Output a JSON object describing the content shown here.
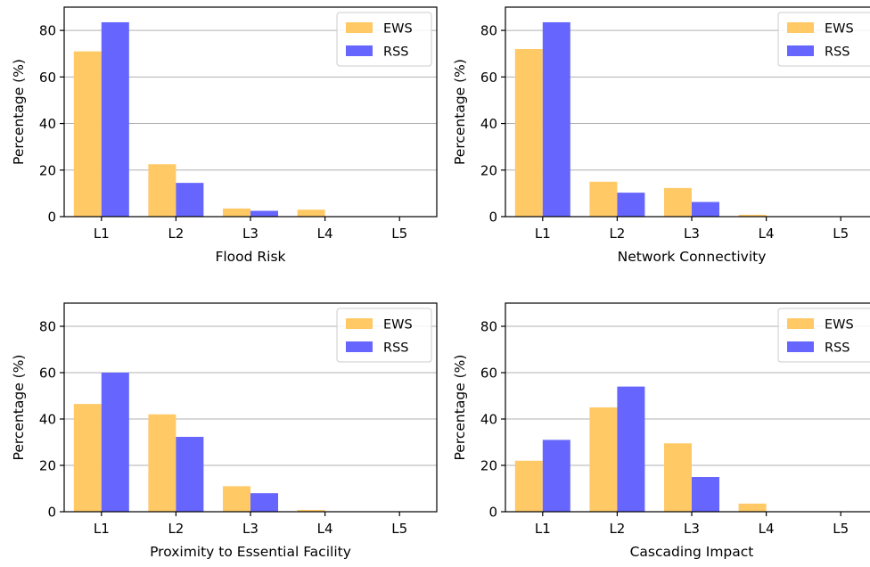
{
  "chart_data": [
    {
      "type": "bar",
      "categories": [
        "L1",
        "L2",
        "L3",
        "L4",
        "L5"
      ],
      "series": [
        {
          "name": "EWS",
          "values": [
            71,
            22.5,
            3.5,
            3,
            0
          ]
        },
        {
          "name": "RSS",
          "values": [
            83.5,
            14.5,
            2.5,
            0,
            0
          ]
        }
      ],
      "xlabel": "Flood Risk",
      "ylabel": "Percentage (%)",
      "ylim": [
        0,
        90
      ],
      "yticks": [
        "0",
        "20",
        "40",
        "60",
        "80"
      ],
      "grid": "horizontal",
      "legend": "top-right"
    },
    {
      "type": "bar",
      "categories": [
        "L1",
        "L2",
        "L3",
        "L4",
        "L5"
      ],
      "series": [
        {
          "name": "EWS",
          "values": [
            72,
            15,
            12.3,
            0.8,
            0
          ]
        },
        {
          "name": "RSS",
          "values": [
            83.5,
            10.3,
            6.3,
            0,
            0
          ]
        }
      ],
      "xlabel": "Network Connectivity",
      "ylabel": "Percentage (%)",
      "ylim": [
        0,
        90
      ],
      "yticks": [
        "0",
        "20",
        "40",
        "60",
        "80"
      ],
      "grid": "horizontal",
      "legend": "top-right"
    },
    {
      "type": "bar",
      "categories": [
        "L1",
        "L2",
        "L3",
        "L4",
        "L5"
      ],
      "series": [
        {
          "name": "EWS",
          "values": [
            46.5,
            42,
            11,
            0.8,
            0
          ]
        },
        {
          "name": "RSS",
          "values": [
            60,
            32.3,
            8,
            0,
            0
          ]
        }
      ],
      "xlabel": "Proximity to Essential Facility",
      "ylabel": "Percentage (%)",
      "ylim": [
        0,
        90
      ],
      "yticks": [
        "0",
        "20",
        "40",
        "60",
        "80"
      ],
      "grid": "horizontal",
      "legend": "top-right"
    },
    {
      "type": "bar",
      "categories": [
        "L1",
        "L2",
        "L3",
        "L4",
        "L5"
      ],
      "series": [
        {
          "name": "EWS",
          "values": [
            22,
            45,
            29.5,
            3.5,
            0
          ]
        },
        {
          "name": "RSS",
          "values": [
            31,
            54,
            15,
            0,
            0
          ]
        }
      ],
      "xlabel": "Cascading Impact",
      "ylabel": "Percentage (%)",
      "ylim": [
        0,
        90
      ],
      "yticks": [
        "0",
        "20",
        "40",
        "60",
        "80"
      ],
      "grid": "horizontal",
      "legend": "top-right"
    }
  ],
  "colors": {
    "EWS": "#FFC966",
    "RSS": "#6666FF",
    "grid": "#B0B0B0",
    "axis": "#000000"
  }
}
